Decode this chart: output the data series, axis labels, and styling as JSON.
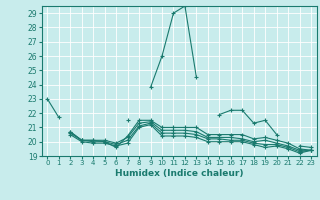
{
  "title": "",
  "xlabel": "Humidex (Indice chaleur)",
  "ylabel": "",
  "bg_color": "#c8ecec",
  "grid_color": "#ffffff",
  "line_color": "#1a7a6e",
  "xlim": [
    -0.5,
    23.5
  ],
  "ylim": [
    19,
    29.5
  ],
  "yticks": [
    19,
    20,
    21,
    22,
    23,
    24,
    25,
    26,
    27,
    28,
    29
  ],
  "xticks": [
    0,
    1,
    2,
    3,
    4,
    5,
    6,
    7,
    8,
    9,
    10,
    11,
    12,
    13,
    14,
    15,
    16,
    17,
    18,
    19,
    20,
    21,
    22,
    23
  ],
  "lines": [
    {
      "x": [
        0,
        1,
        2,
        3,
        4,
        5,
        6,
        7,
        8,
        9,
        10,
        11,
        12,
        13,
        14,
        15,
        16,
        17,
        18,
        19,
        20,
        21,
        22,
        23
      ],
      "y": [
        23.0,
        21.7,
        null,
        null,
        null,
        null,
        null,
        21.5,
        null,
        23.8,
        26.0,
        29.0,
        29.5,
        24.5,
        null,
        21.9,
        22.2,
        22.2,
        21.3,
        21.5,
        20.5,
        null,
        19.7,
        19.6
      ]
    },
    {
      "x": [
        0,
        1,
        2,
        3,
        4,
        5,
        6,
        7,
        8,
        9,
        10,
        11,
        12,
        13,
        14,
        15,
        16,
        17,
        18,
        19,
        20,
        21,
        22,
        23
      ],
      "y": [
        null,
        null,
        20.7,
        20.1,
        20.1,
        20.0,
        19.6,
        20.4,
        21.5,
        21.5,
        21.0,
        21.0,
        21.0,
        21.0,
        20.5,
        20.5,
        20.5,
        20.5,
        20.2,
        20.3,
        20.1,
        19.9,
        19.5,
        19.4
      ]
    },
    {
      "x": [
        0,
        1,
        2,
        3,
        4,
        5,
        6,
        7,
        8,
        9,
        10,
        11,
        12,
        13,
        14,
        15,
        16,
        17,
        18,
        19,
        20,
        21,
        22,
        23
      ],
      "y": [
        null,
        null,
        20.7,
        20.1,
        20.1,
        20.1,
        19.9,
        20.3,
        21.3,
        21.4,
        20.8,
        20.8,
        20.8,
        20.7,
        20.3,
        20.3,
        20.3,
        20.2,
        20.0,
        20.1,
        19.9,
        19.7,
        19.4,
        19.4
      ]
    },
    {
      "x": [
        0,
        1,
        2,
        3,
        4,
        5,
        6,
        7,
        8,
        9,
        10,
        11,
        12,
        13,
        14,
        15,
        16,
        17,
        18,
        19,
        20,
        21,
        22,
        23
      ],
      "y": [
        null,
        null,
        20.6,
        20.1,
        20.0,
        20.0,
        19.8,
        20.1,
        21.1,
        21.3,
        20.6,
        20.6,
        20.6,
        20.5,
        20.2,
        20.2,
        20.1,
        20.1,
        19.9,
        19.8,
        19.8,
        19.6,
        19.3,
        19.4
      ]
    },
    {
      "x": [
        0,
        1,
        2,
        3,
        4,
        5,
        6,
        7,
        8,
        9,
        10,
        11,
        12,
        13,
        14,
        15,
        16,
        17,
        18,
        19,
        20,
        21,
        22,
        23
      ],
      "y": [
        null,
        null,
        20.5,
        20.0,
        19.9,
        19.9,
        19.7,
        19.9,
        21.0,
        21.2,
        20.4,
        20.4,
        20.4,
        20.3,
        20.0,
        20.0,
        20.0,
        20.0,
        19.8,
        19.6,
        19.7,
        19.5,
        19.2,
        19.4
      ]
    }
  ]
}
